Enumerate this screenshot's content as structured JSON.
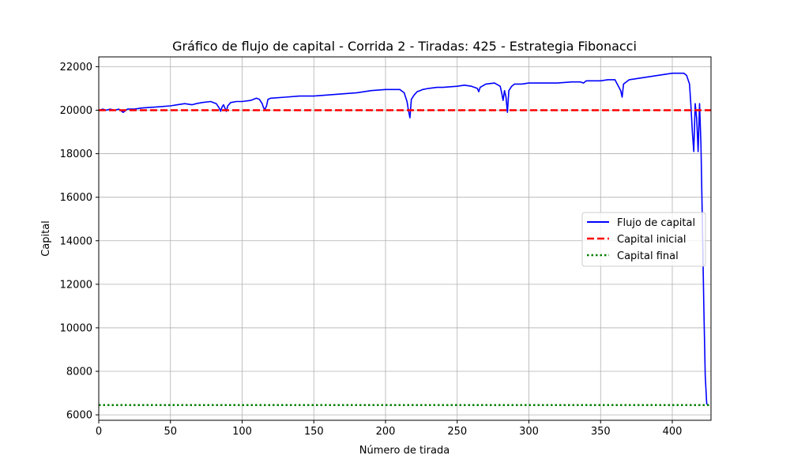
{
  "chart_data": {
    "type": "line",
    "title": "Gráfico de flujo de capital - Corrida 2 - Tiradas: 425 - Estrategia Fibonacci",
    "xlabel": "Número de tirada",
    "ylabel": "Capital",
    "xlim": [
      0,
      427
    ],
    "ylim": [
      5750,
      22450
    ],
    "x_ticks": [
      0,
      50,
      100,
      150,
      200,
      250,
      300,
      350,
      400
    ],
    "y_ticks": [
      6000,
      8000,
      10000,
      12000,
      14000,
      16000,
      18000,
      20000,
      22000
    ],
    "grid": true,
    "legend_position": "center-right",
    "series": [
      {
        "name": "Flujo de capital",
        "style": "solid",
        "color": "#0000ff",
        "x": [
          0,
          3,
          5,
          8,
          11,
          14,
          17,
          20,
          25,
          30,
          40,
          50,
          55,
          60,
          65,
          68,
          72,
          78,
          82,
          84,
          85,
          86,
          87,
          88,
          89,
          90,
          92,
          96,
          100,
          106,
          110,
          112,
          114,
          115,
          116,
          117,
          118,
          120,
          130,
          140,
          150,
          160,
          170,
          180,
          190,
          200,
          210,
          213,
          215,
          216,
          217,
          218,
          220,
          222,
          224,
          226,
          230,
          236,
          240,
          250,
          255,
          260,
          264,
          265,
          266,
          270,
          276,
          280,
          281,
          282,
          283,
          284,
          285,
          286,
          288,
          290,
          295,
          300,
          310,
          320,
          330,
          336,
          338,
          340,
          350,
          355,
          360,
          364,
          365,
          366,
          370,
          380,
          390,
          400,
          405,
          408,
          410,
          412,
          413,
          414,
          415,
          416,
          417,
          418,
          419,
          420,
          421,
          422,
          423,
          424,
          425
        ],
        "values": [
          20000,
          20050,
          20000,
          20050,
          20000,
          20050,
          19900,
          20050,
          20050,
          20100,
          20150,
          20200,
          20250,
          20300,
          20250,
          20300,
          20350,
          20400,
          20300,
          20100,
          19950,
          20150,
          20250,
          20100,
          19950,
          20200,
          20350,
          20400,
          20400,
          20450,
          20550,
          20500,
          20300,
          20100,
          20050,
          20200,
          20500,
          20550,
          20600,
          20650,
          20650,
          20700,
          20750,
          20800,
          20900,
          20950,
          20950,
          20800,
          20400,
          20000,
          19650,
          20500,
          20700,
          20850,
          20900,
          20950,
          21000,
          21050,
          21050,
          21100,
          21150,
          21100,
          21000,
          20850,
          21050,
          21200,
          21250,
          21100,
          20800,
          20450,
          20900,
          20600,
          19900,
          20900,
          21100,
          21200,
          21200,
          21250,
          21250,
          21250,
          21300,
          21300,
          21250,
          21350,
          21350,
          21400,
          21400,
          20900,
          20600,
          21200,
          21400,
          21500,
          21600,
          21700,
          21700,
          21700,
          21600,
          21200,
          20200,
          19000,
          18100,
          20300,
          19600,
          18100,
          20300,
          18400,
          14800,
          11000,
          7800,
          6500,
          6450
        ]
      },
      {
        "name": "Capital inicial",
        "style": "dashed",
        "color": "#ff0000",
        "y": 20000
      },
      {
        "name": "Capital final",
        "style": "dotted",
        "color": "#008000",
        "y": 6450
      }
    ]
  }
}
